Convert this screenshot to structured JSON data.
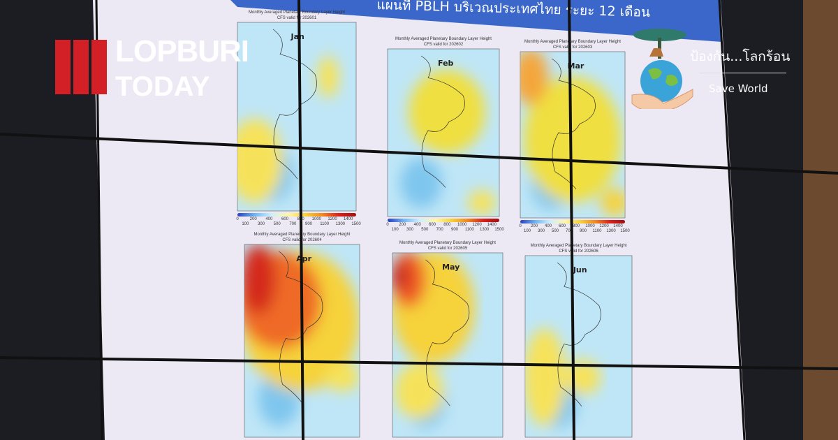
{
  "screen": {
    "title": "แผนที่ PBLH บริเวณประเทศไทย  ระยะ 12 เดือน",
    "panels": [
      {
        "month": "Jan",
        "caption": "Monthly Averaged Planetary Boundary Layer Height",
        "valid": "CFS valid for 202601"
      },
      {
        "month": "Feb",
        "caption": "Monthly Averaged Planetary Boundary Layer Height",
        "valid": "CFS valid for 202602"
      },
      {
        "month": "Mar",
        "caption": "Monthly Averaged Planetary Boundary Layer Height",
        "valid": "CFS valid for 202603"
      },
      {
        "month": "Apr",
        "caption": "Monthly Averaged Planetary Boundary Layer Height",
        "valid": "CFS valid for 202604"
      },
      {
        "month": "May",
        "caption": "Monthly Averaged Planetary Boundary Layer Height",
        "valid": "CFS valid for 202605"
      },
      {
        "month": "Jun",
        "caption": "Monthly Averaged Planetary Boundary Layer Height",
        "valid": "CFS valid for 202606"
      }
    ],
    "colorbar_ticks": [
      "0",
      "100",
      "200",
      "300",
      "400",
      "500",
      "600",
      "700",
      "800",
      "900",
      "1000",
      "1100",
      "1200",
      "1300",
      "1400",
      "1500"
    ],
    "colorbar_scale": [
      "#2a3fbf",
      "#6fb4f0",
      "#cdeffc",
      "#fff6a8",
      "#f6d23a",
      "#f08a20",
      "#d8201a"
    ]
  },
  "logo_lopburi": {
    "line1": "LOPBURI",
    "line2": "TODAY",
    "color": "#d32027"
  },
  "logo_saveworld": {
    "thai": "ป้องกัน...โลกร้อน",
    "english": "Save World"
  }
}
